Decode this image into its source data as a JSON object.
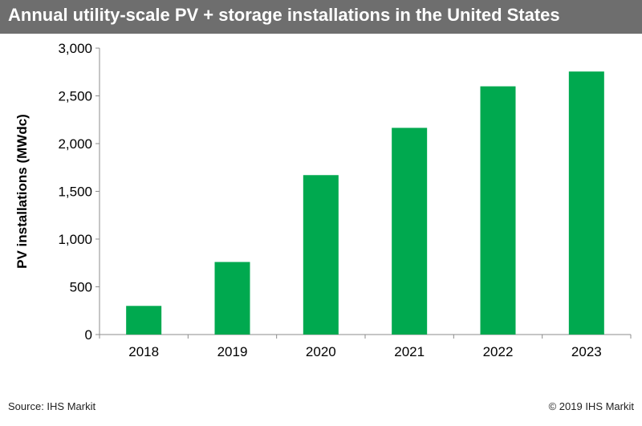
{
  "header": {
    "title": "Annual utility-scale PV + storage installations in the United States"
  },
  "chart_data": {
    "type": "bar",
    "title": "Annual utility-scale PV + storage installations in the United States",
    "xlabel": "",
    "ylabel": "PV installations  (MWdc)",
    "categories": [
      "2018",
      "2019",
      "2020",
      "2021",
      "2022",
      "2023"
    ],
    "values": [
      300,
      760,
      1670,
      2165,
      2600,
      2755
    ],
    "ylim": [
      0,
      3000
    ],
    "yticks": [
      0,
      500,
      1000,
      1500,
      2000,
      2500,
      3000
    ],
    "ytick_labels": [
      "0",
      "500",
      "1,000",
      "1,500",
      "2,000",
      "2,500",
      "3,000"
    ],
    "grid": false,
    "legend": "none",
    "bar_color": "#00a94f"
  },
  "footer": {
    "source": "Source: IHS Markit",
    "copyright": "© 2019 IHS Markit"
  }
}
